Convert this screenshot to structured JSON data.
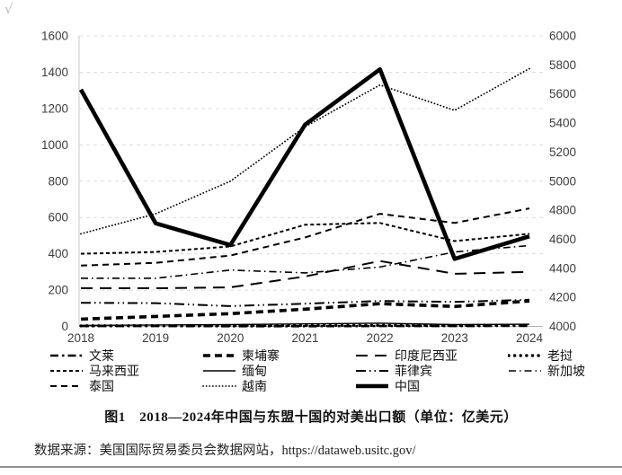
{
  "annotation_mark": "√",
  "caption": "图1　2018—2024年中国与东盟十国的对美出口额（单位：亿美元）",
  "source": "数据来源：美国国际贸易委员会数据网站，https://dataweb.usitc.gov/",
  "chart_data": {
    "type": "line",
    "title": "图1 2018—2024年中国与东盟十国的对美出口额（单位：亿美元）",
    "x": [
      2018,
      2019,
      2020,
      2021,
      2022,
      2023,
      2024
    ],
    "left_axis": {
      "label": "",
      "min": 0,
      "max": 1600,
      "step": 200,
      "ticks": [
        1600,
        1400,
        1200,
        1000,
        800,
        600,
        400,
        200,
        0
      ]
    },
    "right_axis": {
      "label": "",
      "min": 4000,
      "max": 6000,
      "step": 200,
      "ticks": [
        6000,
        5800,
        5600,
        5400,
        5200,
        5000,
        4800,
        4600,
        4400,
        4200,
        4000
      ]
    },
    "grid": true,
    "legend_position": "bottom",
    "line_color": "#000000",
    "series": [
      {
        "id": "brunei",
        "name": "文莱",
        "axis": "left",
        "style": "bold-dash-dot",
        "values": [
          2,
          2,
          1,
          1,
          2,
          2,
          3
        ]
      },
      {
        "id": "cambodia",
        "name": "柬埔寨",
        "axis": "left",
        "style": "heavy-dash",
        "values": [
          40,
          55,
          70,
          95,
          125,
          110,
          140
        ]
      },
      {
        "id": "indonesia",
        "name": "印度尼西亚",
        "axis": "left",
        "style": "long-dash",
        "values": [
          210,
          210,
          215,
          275,
          360,
          290,
          300
        ]
      },
      {
        "id": "laos",
        "name": "老挝",
        "axis": "left",
        "style": "heavy-dot",
        "values": [
          3,
          4,
          4,
          5,
          6,
          5,
          7
        ]
      },
      {
        "id": "malaysia",
        "name": "马来西亚",
        "axis": "left",
        "style": "fine-dash",
        "values": [
          400,
          410,
          440,
          560,
          570,
          470,
          510
        ]
      },
      {
        "id": "myanmar",
        "name": "缅甸",
        "axis": "left",
        "style": "thin-solid",
        "values": [
          5,
          8,
          10,
          14,
          18,
          10,
          12
        ]
      },
      {
        "id": "philippines",
        "name": "菲律宾",
        "axis": "left",
        "style": "dash-dot-dot",
        "values": [
          130,
          128,
          112,
          125,
          140,
          135,
          147
        ]
      },
      {
        "id": "singapore",
        "name": "新加坡",
        "axis": "left",
        "style": "dash-dot",
        "values": [
          265,
          265,
          310,
          295,
          327,
          410,
          445
        ]
      },
      {
        "id": "thailand",
        "name": "泰国",
        "axis": "left",
        "style": "med-dash",
        "values": [
          335,
          350,
          390,
          490,
          620,
          570,
          650
        ]
      },
      {
        "id": "vietnam",
        "name": "越南",
        "axis": "left",
        "style": "fine-dot",
        "values": [
          510,
          620,
          800,
          1100,
          1330,
          1190,
          1420
        ]
      },
      {
        "id": "china",
        "name": "中国",
        "axis": "right",
        "style": "thick-solid",
        "values": [
          5630,
          4710,
          4560,
          5390,
          5770,
          4465,
          4620
        ]
      }
    ]
  }
}
